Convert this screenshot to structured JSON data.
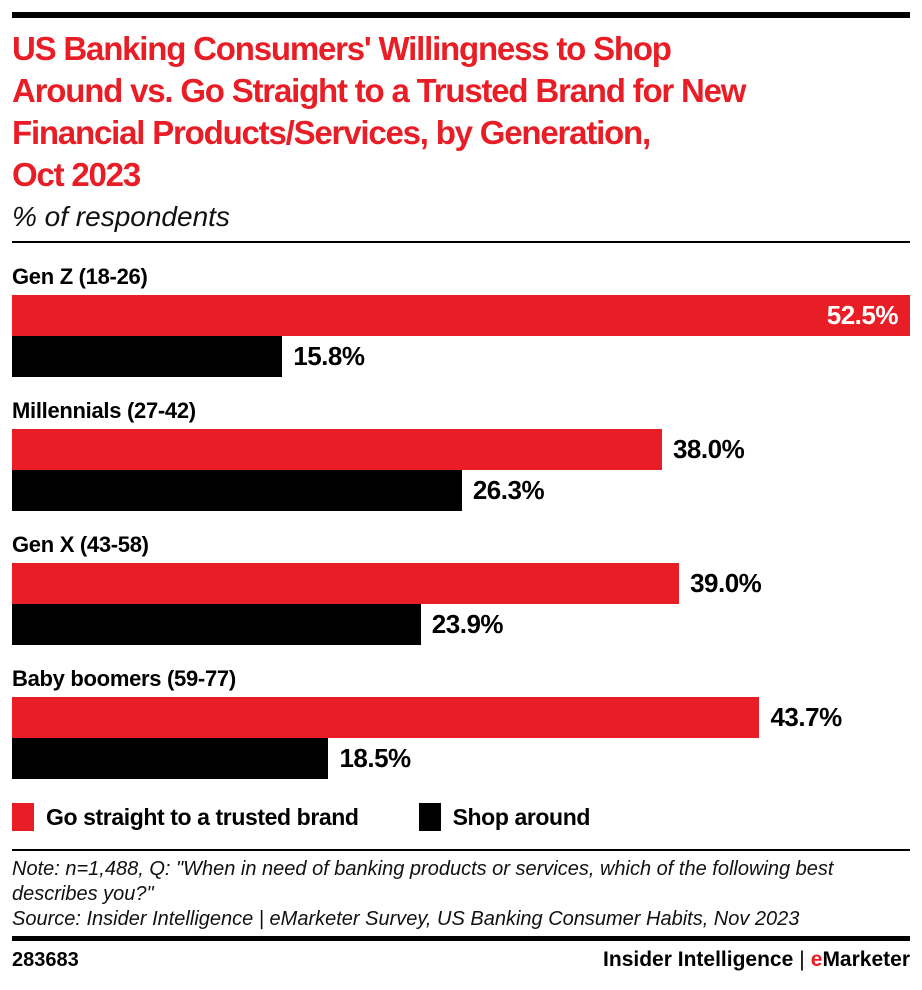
{
  "meta": {
    "title": "US Banking Consumers' Willingness to Shop\nAround vs. Go Straight to a Trusted Brand for New\nFinancial Products/Services, by Generation,\nOct 2023",
    "subtitle": "% of respondents"
  },
  "colors": {
    "accent_red": "#e81d25",
    "bar_black": "#000000"
  },
  "chart_data": {
    "type": "bar",
    "orientation": "horizontal",
    "unit": "%",
    "title": "US Banking Consumers' Willingness to Shop Around vs. Go Straight to a Trusted Brand for New Financial Products/Services, by Generation, Oct 2023",
    "subtitle": "% of respondents",
    "categories": [
      "Gen Z (18-26)",
      "Millennials (27-42)",
      "Gen X (43-58)",
      "Baby boomers (59-77)"
    ],
    "series": [
      {
        "name": "Go straight to a trusted brand",
        "color": "#e81d25",
        "values": [
          52.5,
          38.0,
          39.0,
          43.7
        ]
      },
      {
        "name": "Shop around",
        "color": "#000000",
        "values": [
          15.8,
          26.3,
          23.9,
          18.5
        ]
      }
    ],
    "value_label_format": "one-decimal-percent",
    "axis_max": 52.5,
    "grid": false,
    "legend_position": "bottom"
  },
  "legend": {
    "items": [
      {
        "label": "Go straight to a trusted brand",
        "color": "#e81d25"
      },
      {
        "label": "Shop around",
        "color": "#000000"
      }
    ]
  },
  "notes": {
    "note": "Note: n=1,488, Q: \"When in need of banking products or services, which of the following best describes you?\"",
    "source": "Source: Insider Intelligence | eMarketer Survey, US Banking Consumer Habits, Nov 2023"
  },
  "footer": {
    "chart_id": "283683",
    "brand": {
      "name": "Insider Intelligence",
      "separator": "|",
      "e": "e",
      "rest": "Marketer"
    }
  }
}
